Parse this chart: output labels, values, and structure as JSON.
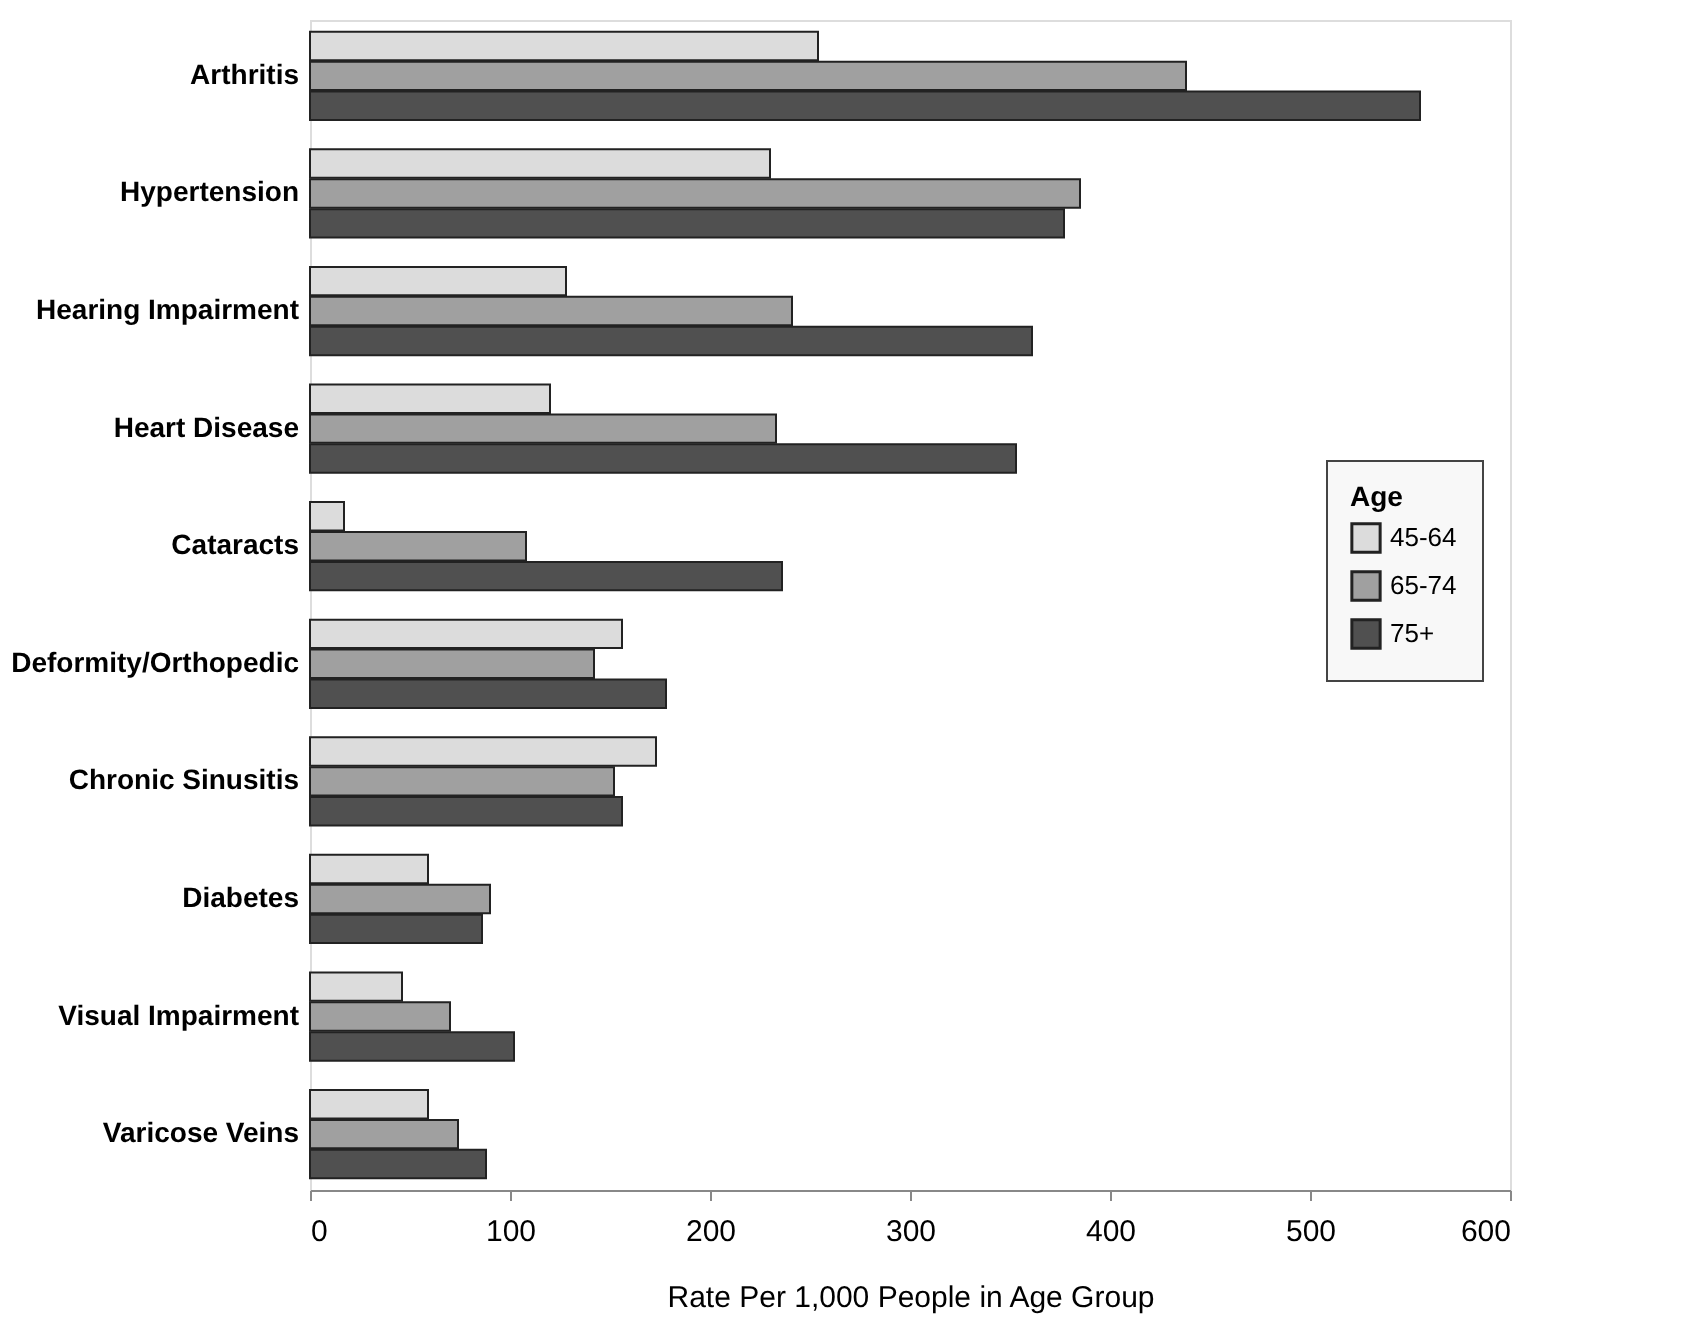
{
  "chart_data": {
    "type": "bar",
    "orientation": "horizontal",
    "xlabel": "Rate Per 1,000 People in Age Group",
    "legend_title": "Age",
    "legend": "right",
    "grid": false,
    "categories": [
      "Arthritis",
      "Hypertension",
      "Hearing Impairment",
      "Heart Disease",
      "Cataracts",
      "Deformity/Orthopedic",
      "Chronic Sinusitis",
      "Diabetes",
      "Visual Impairment",
      "Varicose Veins"
    ],
    "series": [
      {
        "name": "45-64",
        "color": "#dcdcdc",
        "values": [
          254,
          230,
          128,
          120,
          17,
          156,
          173,
          59,
          46,
          59
        ]
      },
      {
        "name": "65-74",
        "color": "#a0a0a0",
        "values": [
          438,
          385,
          241,
          233,
          108,
          142,
          152,
          90,
          70,
          74
        ]
      },
      {
        "name": "75+",
        "color": "#505050",
        "values": [
          555,
          377,
          361,
          353,
          236,
          178,
          156,
          86,
          102,
          88
        ]
      }
    ],
    "xlim": [
      0,
      600
    ],
    "xticks": [
      0,
      100,
      200,
      300,
      400,
      500,
      600
    ]
  }
}
